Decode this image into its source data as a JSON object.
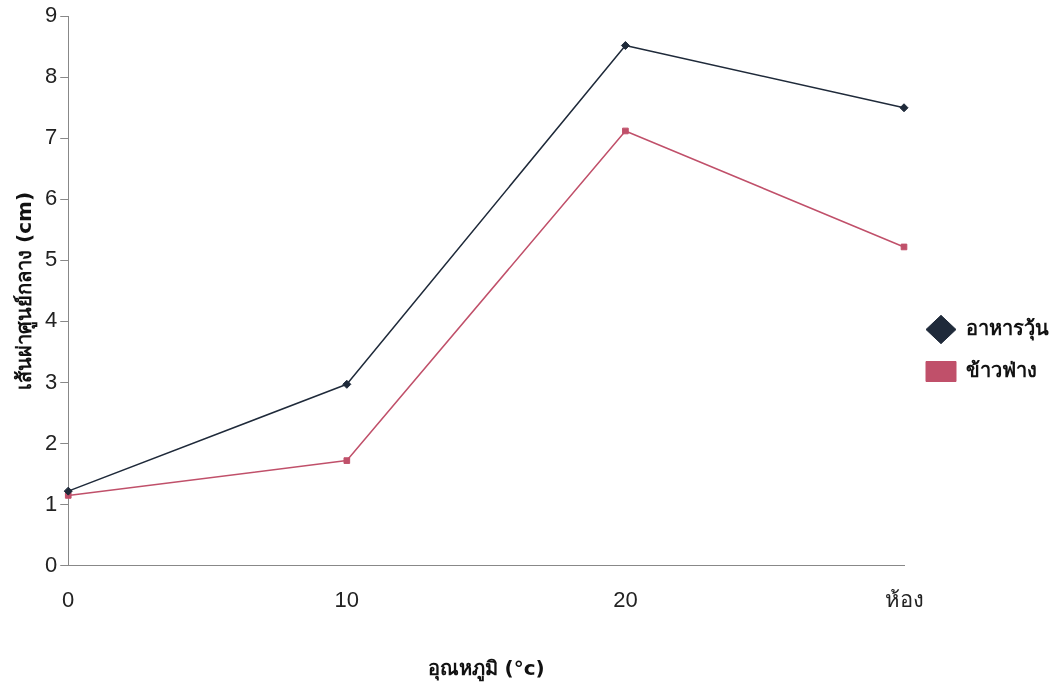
{
  "chart_data": {
    "type": "line",
    "xlabel": "อุณหภูมิ (°c)",
    "ylabel": "เส้นผ่าศูนย์กลาง (cm)",
    "categories": [
      "0",
      "10",
      "20",
      "ห้อง"
    ],
    "series": [
      {
        "name": "อาหารวุ้น",
        "color": "#1f2a3a",
        "marker": "diamond",
        "values": [
          1.22,
          2.97,
          8.52,
          7.5
        ]
      },
      {
        "name": "ข้าวฟ่าง",
        "color": "#c0506a",
        "marker": "square",
        "values": [
          1.15,
          1.72,
          7.12,
          5.22
        ]
      }
    ],
    "ylim": [
      0,
      9
    ],
    "yticks": [
      0,
      1,
      2,
      3,
      4,
      5,
      6,
      7,
      8,
      9
    ],
    "grid": false,
    "legend": "right",
    "line_style": "solid"
  }
}
